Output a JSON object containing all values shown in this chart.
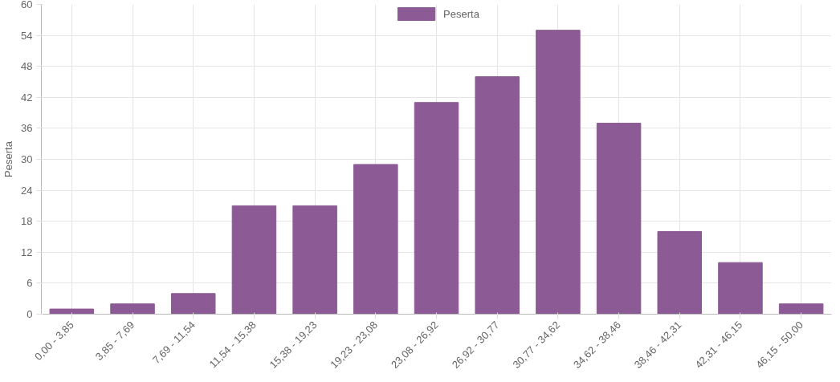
{
  "chart_data": {
    "type": "bar",
    "ylabel": "Peserta",
    "categories": [
      "0,00 - 3,85",
      "3,85 - 7,69",
      "7,69 - 11,54",
      "11,54 - 15,38",
      "15,38 - 19,23",
      "19,23 - 23,08",
      "23,08 - 26,92",
      "26,92 - 30,77",
      "30,77 - 34,62",
      "34,62 - 38,46",
      "38,46 - 42,31",
      "42,31 - 46,15",
      "46,15 - 50,00"
    ],
    "series": [
      {
        "name": "Peserta",
        "color": "#8c5a94",
        "values": [
          1,
          2,
          4,
          21,
          21,
          29,
          41,
          46,
          55,
          37,
          16,
          10,
          2
        ]
      }
    ],
    "ylim": [
      0,
      60
    ],
    "yticks": [
      0,
      6,
      12,
      18,
      24,
      30,
      36,
      42,
      48,
      54,
      60
    ],
    "grid": true,
    "legend": "top"
  }
}
